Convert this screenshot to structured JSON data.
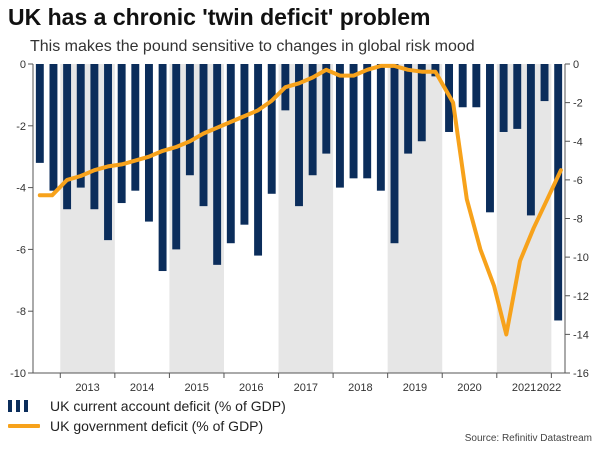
{
  "header": {
    "title": "UK has a chronic 'twin deficit' problem",
    "subtitle": "This makes the pound sensitive to changes in global risk mood"
  },
  "legend": {
    "bars_label": "UK current account deficit (% of GDP)",
    "line_label": "UK government deficit (% of GDP)"
  },
  "source": "Source: Refinitiv Datastream",
  "colors": {
    "bar": "#0b2d5b",
    "line": "#f7a21b",
    "band": "#e6e6e6",
    "axis_text": "#333333"
  },
  "chart_data": {
    "type": "bar+line",
    "categories": [
      "2012Q3",
      "2012Q4",
      "2013Q1",
      "2013Q2",
      "2013Q3",
      "2013Q4",
      "2014Q1",
      "2014Q2",
      "2014Q3",
      "2014Q4",
      "2015Q1",
      "2015Q2",
      "2015Q3",
      "2015Q4",
      "2016Q1",
      "2016Q2",
      "2016Q3",
      "2016Q4",
      "2017Q1",
      "2017Q2",
      "2017Q3",
      "2017Q4",
      "2018Q1",
      "2018Q2",
      "2018Q3",
      "2018Q4",
      "2019Q1",
      "2019Q2",
      "2019Q3",
      "2019Q4",
      "2020Q1",
      "2020Q2",
      "2020Q3",
      "2020Q4",
      "2021Q1",
      "2021Q2",
      "2021Q3",
      "2021Q4",
      "2022Q1"
    ],
    "year_labels": [
      "2013",
      "2014",
      "2015",
      "2016",
      "2017",
      "2018",
      "2019",
      "2020",
      "2021",
      "2022"
    ],
    "shaded_years": [
      "2013",
      "2015",
      "2017",
      "2019",
      "2021"
    ],
    "series": [
      {
        "name": "UK current account deficit (% of GDP)",
        "type": "bar",
        "axis": "left",
        "values": [
          -3.2,
          -4.1,
          -4.7,
          -4.0,
          -4.7,
          -5.7,
          -4.5,
          -4.1,
          -5.1,
          -6.7,
          -6.0,
          -3.6,
          -4.6,
          -6.5,
          -5.8,
          -5.2,
          -6.2,
          -4.2,
          -1.5,
          -4.6,
          -3.6,
          -2.9,
          -4.0,
          -3.7,
          -3.7,
          -4.1,
          -5.8,
          -2.9,
          -2.5,
          -0.4,
          -2.2,
          -1.4,
          -1.4,
          -4.8,
          -2.2,
          -2.1,
          -4.9,
          -1.2,
          -8.3
        ]
      },
      {
        "name": "UK government deficit (% of GDP)",
        "type": "line",
        "axis": "right",
        "values": [
          -6.8,
          -6.8,
          -6.0,
          -5.8,
          -5.5,
          -5.3,
          -5.2,
          -5.0,
          -4.8,
          -4.5,
          -4.3,
          -4.0,
          -3.6,
          -3.3,
          -3.0,
          -2.7,
          -2.4,
          -1.9,
          -1.2,
          -1.0,
          -0.7,
          -0.3,
          -0.6,
          -0.6,
          -0.3,
          -0.1,
          -0.1,
          -0.3,
          -0.4,
          -0.4,
          -2.0,
          -7.0,
          -9.6,
          -11.5,
          -14.0,
          -10.2,
          -8.5,
          -7.0,
          -5.5
        ],
        "x_index": [
          0,
          0.9,
          2,
          3,
          4,
          5,
          6,
          7,
          8,
          9,
          10,
          11,
          12,
          13,
          14,
          15,
          16,
          17,
          18,
          19,
          20,
          21,
          22,
          23,
          24,
          25,
          26,
          27,
          28,
          29,
          30.3,
          31.3,
          32.3,
          33.3,
          34.2,
          35.2,
          36.2,
          37.2,
          38.2
        ]
      }
    ],
    "left_axis": {
      "ylim": [
        -10,
        0
      ],
      "ticks": [
        0,
        -2,
        -4,
        -6,
        -8,
        -10
      ],
      "tick_labels": [
        "0",
        "-2",
        "-4",
        "-6",
        "-8",
        "-10"
      ]
    },
    "right_axis": {
      "ylim": [
        -16,
        0
      ],
      "ticks": [
        0,
        -2,
        -4,
        -6,
        -8,
        -10,
        -12,
        -14,
        -16
      ],
      "tick_labels": [
        "0",
        "-2",
        "-4",
        "-6",
        "-8",
        "-10",
        "-12",
        "-14",
        "-16"
      ]
    },
    "grid": false
  }
}
